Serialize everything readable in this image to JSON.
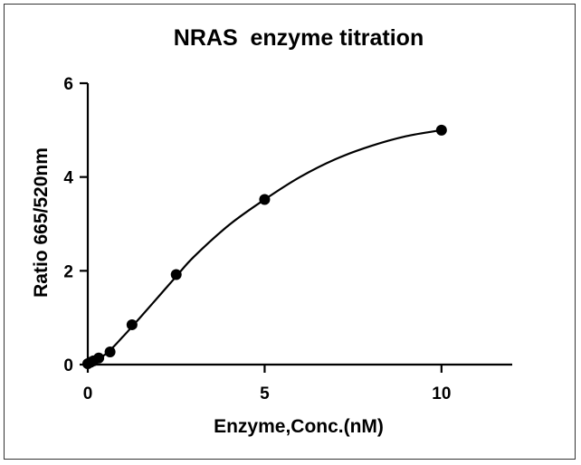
{
  "chart_data": {
    "type": "scatter",
    "title": "NRAS  enzyme titration",
    "xlabel": "Enzyme,Conc.(nM)",
    "ylabel": "Ratio 665/520nm",
    "xlim": [
      0,
      12
    ],
    "ylim": [
      0,
      6
    ],
    "xticks": [
      0,
      5,
      10
    ],
    "yticks": [
      0,
      2,
      4,
      6
    ],
    "grid": false,
    "legend": "none",
    "series": [
      {
        "points": [
          {
            "x": 0.0,
            "y": 0.02
          },
          {
            "x": 0.08,
            "y": 0.05
          },
          {
            "x": 0.16,
            "y": 0.08
          },
          {
            "x": 0.31,
            "y": 0.14
          },
          {
            "x": 0.63,
            "y": 0.27
          },
          {
            "x": 1.25,
            "y": 0.85
          },
          {
            "x": 2.5,
            "y": 1.92
          },
          {
            "x": 5.0,
            "y": 3.52
          },
          {
            "x": 10.0,
            "y": 5.0
          }
        ],
        "fit_curve": [
          {
            "x": 0.0,
            "y": 0.02
          },
          {
            "x": 0.5,
            "y": 0.22
          },
          {
            "x": 1.0,
            "y": 0.6
          },
          {
            "x": 1.5,
            "y": 1.02
          },
          {
            "x": 2.0,
            "y": 1.45
          },
          {
            "x": 2.5,
            "y": 1.88
          },
          {
            "x": 3.0,
            "y": 2.3
          },
          {
            "x": 4.0,
            "y": 2.98
          },
          {
            "x": 5.0,
            "y": 3.52
          },
          {
            "x": 6.0,
            "y": 4.0
          },
          {
            "x": 7.0,
            "y": 4.38
          },
          {
            "x": 8.0,
            "y": 4.66
          },
          {
            "x": 9.0,
            "y": 4.87
          },
          {
            "x": 10.0,
            "y": 5.0
          }
        ]
      }
    ],
    "colors": {
      "marker": "#000000",
      "line": "#000000",
      "axis": "#000000"
    }
  }
}
